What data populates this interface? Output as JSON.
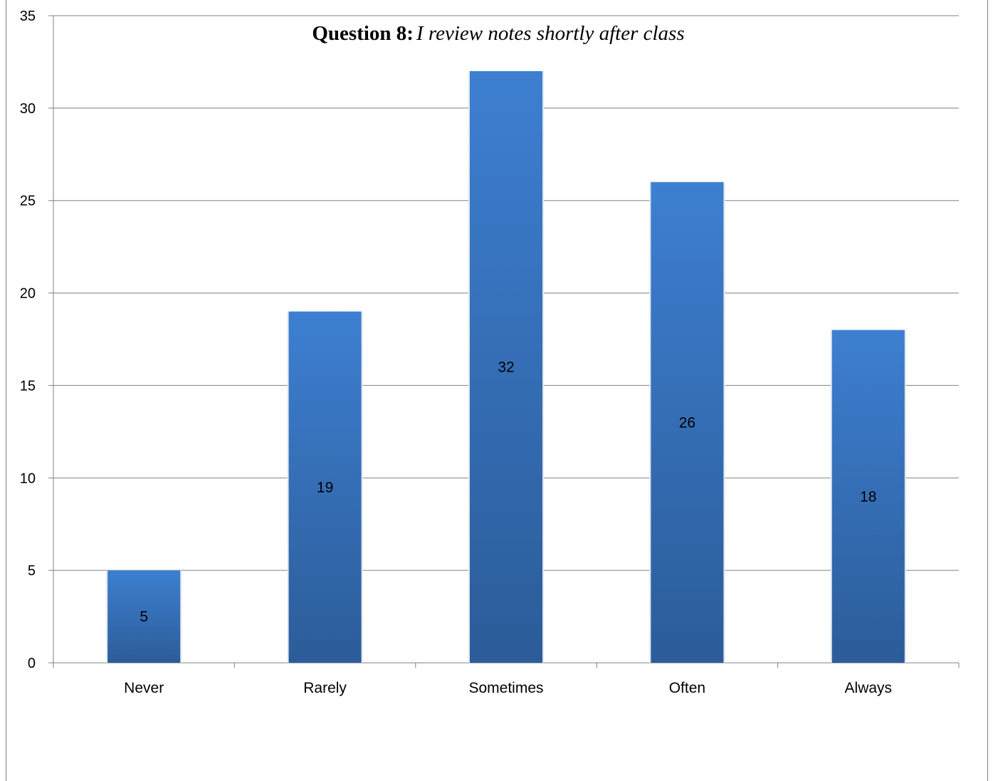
{
  "chart_data": {
    "type": "bar",
    "title": {
      "prefix": "Question 8:",
      "text": "I review notes shortly after class"
    },
    "categories": [
      "Never",
      "Rarely",
      "Sometimes",
      "Often",
      "Always"
    ],
    "values": [
      5,
      19,
      32,
      26,
      18
    ],
    "ylim": [
      0,
      35
    ],
    "yticks": [
      0,
      5,
      10,
      15,
      20,
      25,
      30,
      35
    ],
    "grid": true,
    "legend": "none",
    "xlabel": "",
    "ylabel": "",
    "colors": {
      "bar_top": "#3D7FD1",
      "bar_bottom": "#2C5C99",
      "grid": "#808080"
    }
  }
}
